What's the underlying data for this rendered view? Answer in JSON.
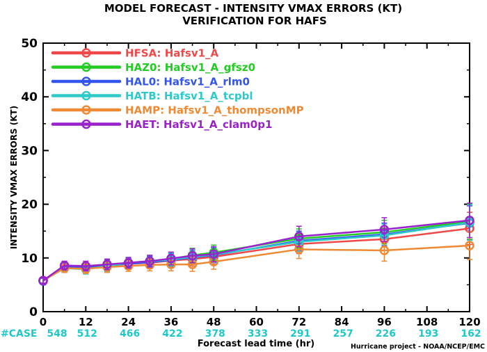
{
  "chart_data": {
    "type": "line",
    "title": "MODEL FORECAST - INTENSITY VMAX ERRORS (KT)",
    "subtitle": "VERIFICATION FOR HAFS",
    "xlabel": "Forecast lead time (hr)",
    "ylabel": "INTENSITY VMAX ERRORS (KT)",
    "xlim": [
      0,
      120
    ],
    "ylim": [
      0,
      50
    ],
    "x_ticks": [
      0,
      12,
      24,
      36,
      48,
      60,
      72,
      84,
      96,
      108,
      120
    ],
    "y_ticks": [
      0,
      10,
      20,
      30,
      40,
      50
    ],
    "x": [
      0,
      6,
      12,
      18,
      24,
      30,
      36,
      42,
      48,
      72,
      96,
      120
    ],
    "case_label": "#CASE",
    "case_x": [
      0,
      12,
      24,
      36,
      48,
      60,
      72,
      84,
      96,
      108,
      120
    ],
    "case_counts": [
      548,
      512,
      466,
      422,
      378,
      333,
      291,
      257,
      226,
      193,
      162
    ],
    "case_color": "#1fc9c9",
    "legend_position": "top-left",
    "credit": "Hurricane project - NOAA/NCEP/EMC",
    "series": [
      {
        "name": "HFSA: Hafsv1_A",
        "color": "#f04848",
        "values": [
          5.8,
          8.4,
          8.3,
          8.6,
          8.9,
          9.1,
          9.5,
          9.8,
          10.2,
          12.6,
          13.5,
          15.5
        ],
        "err": [
          0.5,
          0.8,
          0.9,
          1.0,
          1.0,
          1.1,
          1.2,
          1.3,
          1.4,
          1.8,
          2.1,
          3.0
        ]
      },
      {
        "name": "HAZ0: Hafsv1_A_gfsz0",
        "color": "#22cc22",
        "values": [
          5.8,
          8.2,
          8.1,
          8.5,
          9.0,
          9.4,
          9.8,
          10.5,
          11.0,
          13.6,
          14.8,
          16.8
        ],
        "err": [
          0.5,
          0.8,
          0.9,
          1.0,
          1.0,
          1.1,
          1.2,
          1.3,
          1.4,
          1.8,
          2.2,
          3.3
        ]
      },
      {
        "name": "HAL0: Hafsv1_A_rlm0",
        "color": "#3355ee",
        "values": [
          5.7,
          8.3,
          8.2,
          8.6,
          8.9,
          9.2,
          9.6,
          10.1,
          10.5,
          13.2,
          14.4,
          16.5
        ],
        "err": [
          0.5,
          0.8,
          0.9,
          1.0,
          1.0,
          1.1,
          1.2,
          1.3,
          1.4,
          1.8,
          2.1,
          3.2
        ]
      },
      {
        "name": "HATB: Hafsv1_A_tcpbl",
        "color": "#2ec9c9",
        "values": [
          5.8,
          8.1,
          7.9,
          8.5,
          9.1,
          9.4,
          9.7,
          10.2,
          10.6,
          13.0,
          14.2,
          16.6
        ],
        "err": [
          0.5,
          0.8,
          0.9,
          1.0,
          1.0,
          1.1,
          1.2,
          1.3,
          1.4,
          1.8,
          2.1,
          3.3
        ]
      },
      {
        "name": "HAMP: Hafsv1_A_thompsonMP",
        "color": "#ee8a33",
        "values": [
          5.8,
          8.1,
          8.0,
          8.3,
          8.5,
          8.7,
          8.8,
          8.8,
          9.3,
          11.6,
          11.4,
          12.3
        ],
        "err": [
          0.5,
          0.8,
          0.9,
          1.0,
          1.0,
          1.1,
          1.2,
          1.3,
          1.4,
          1.7,
          2.0,
          2.6
        ]
      },
      {
        "name": "HAET: Hafsv1_A_clam0p1",
        "color": "#9922cc",
        "values": [
          5.8,
          8.6,
          8.5,
          8.8,
          9.1,
          9.4,
          9.9,
          10.4,
          10.7,
          14.0,
          15.3,
          17.0
        ],
        "err": [
          0.5,
          0.8,
          0.9,
          1.0,
          1.0,
          1.1,
          1.2,
          1.3,
          1.4,
          1.9,
          2.2,
          3.2
        ]
      }
    ]
  }
}
